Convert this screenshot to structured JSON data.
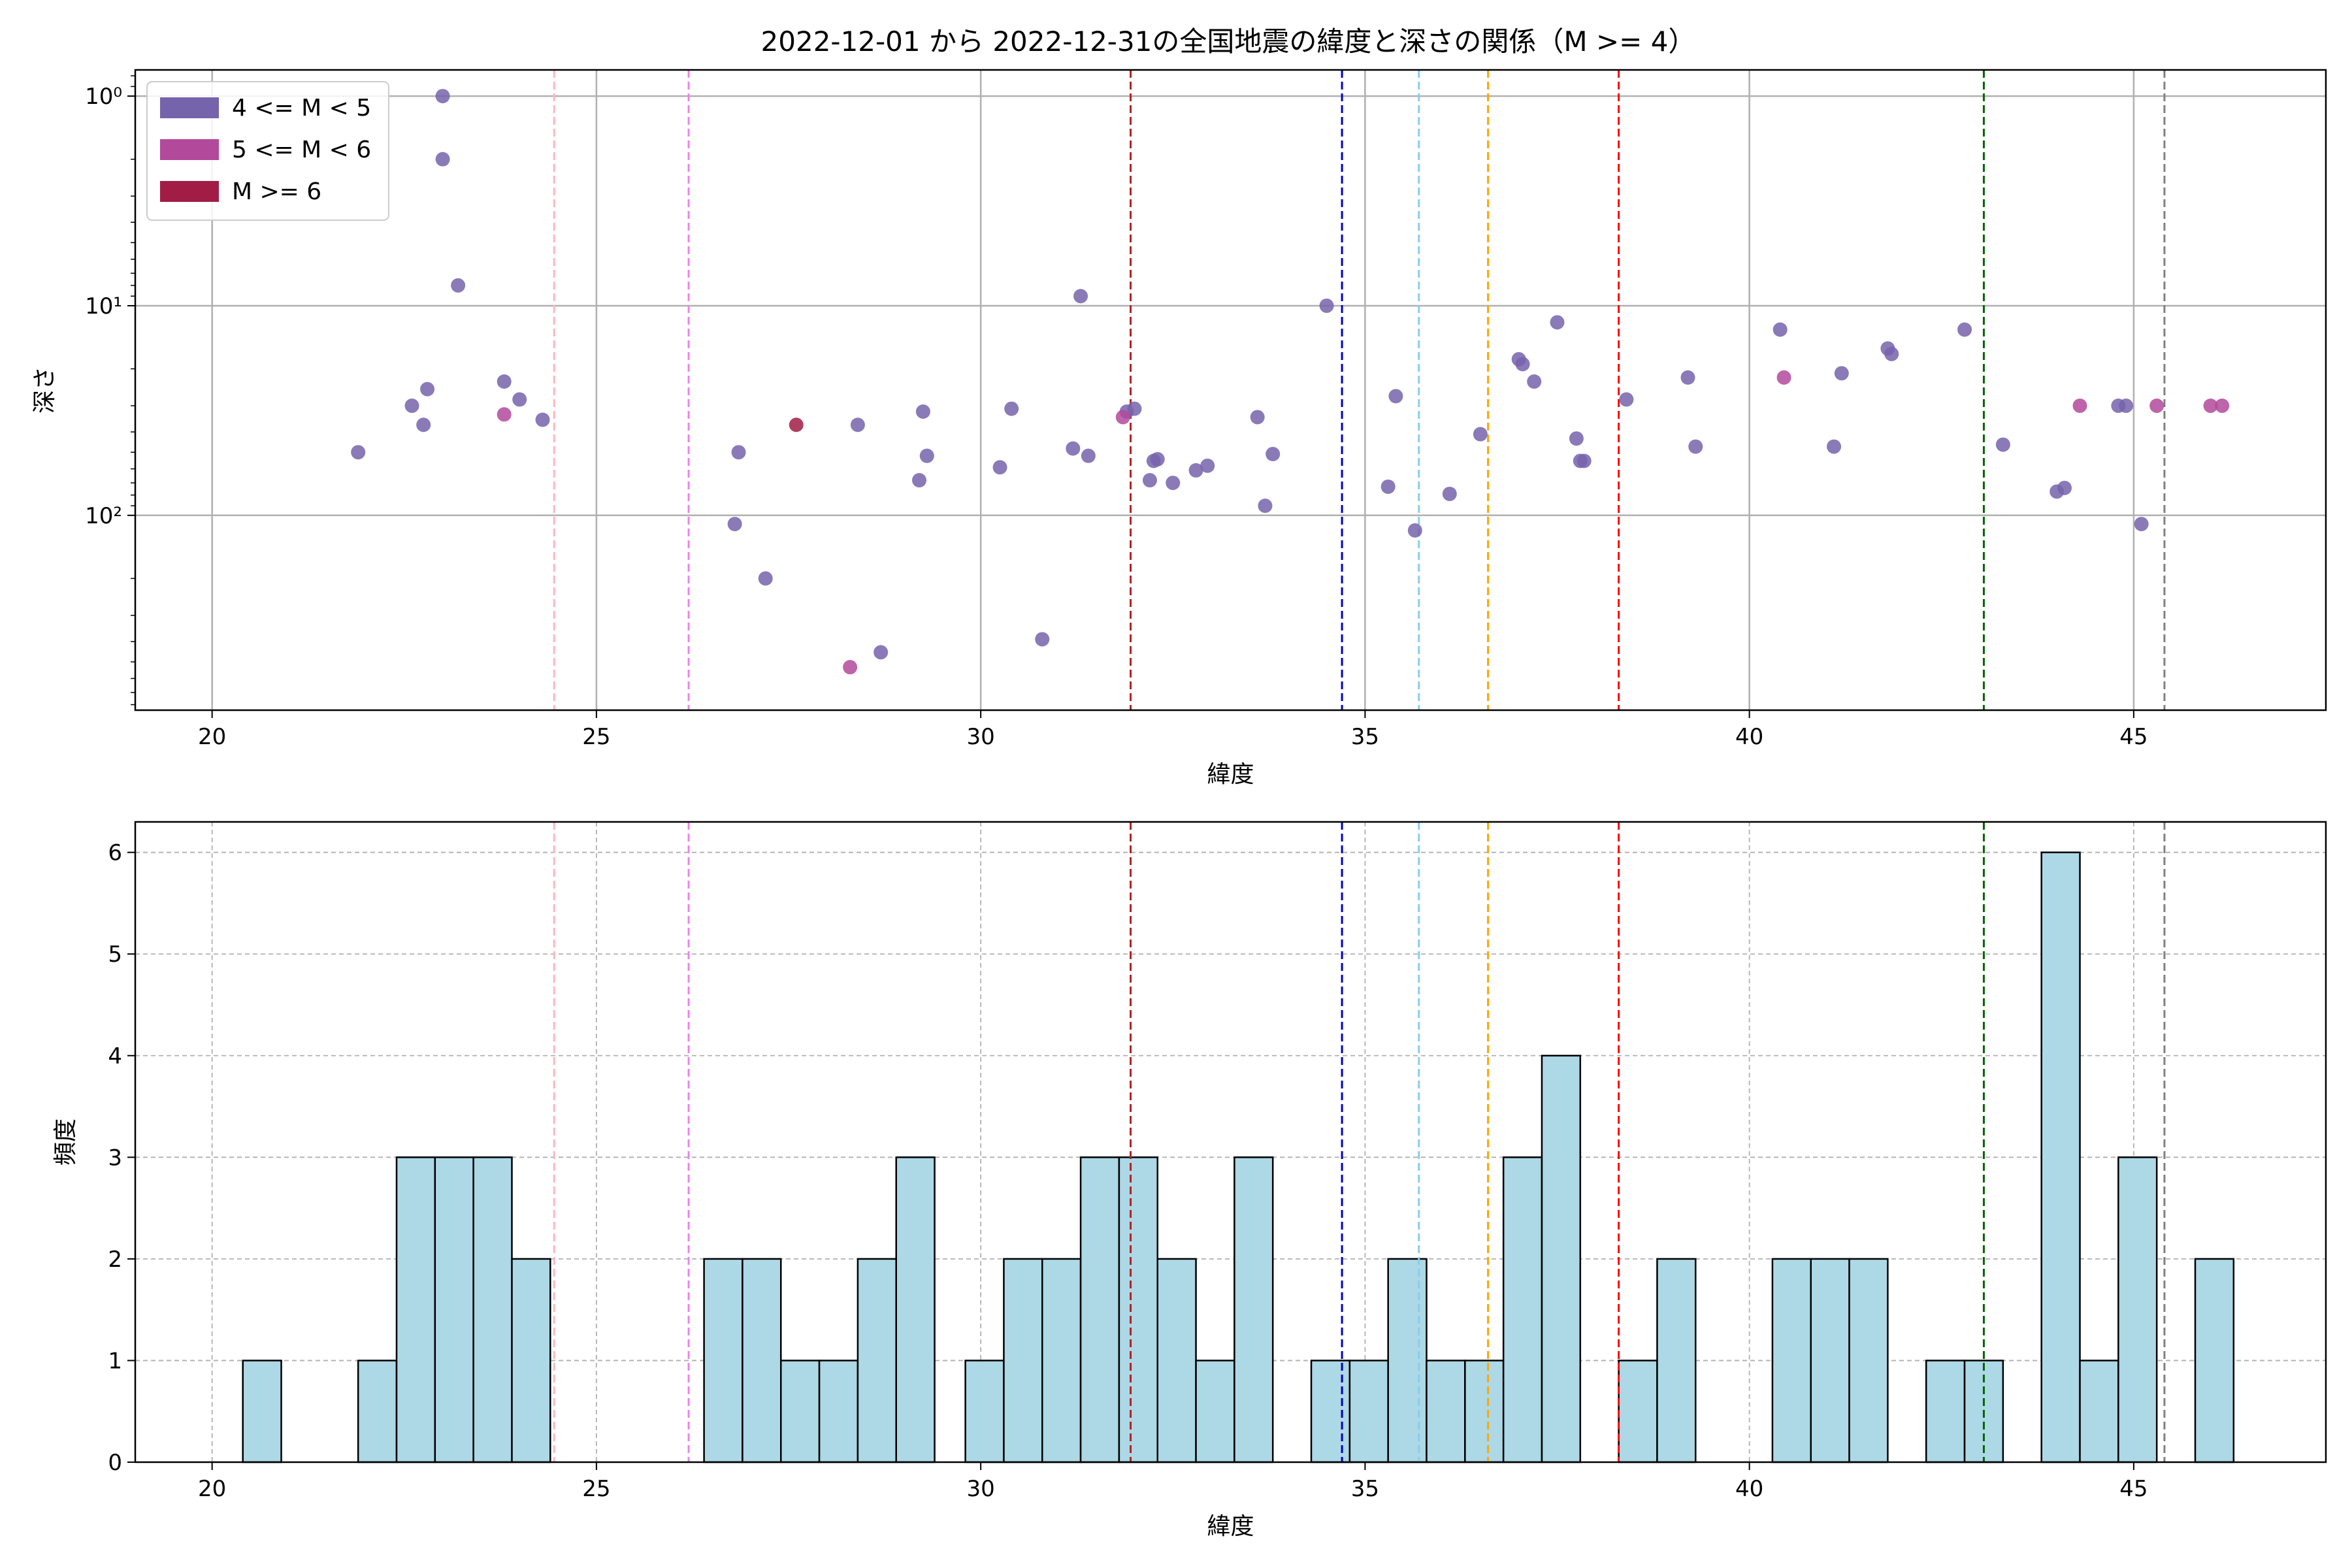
{
  "chart_data": [
    {
      "type": "scatter",
      "title": "2022-12-01 から 2022-12-31の全国地震の緯度と深さの関係（M >= 4）",
      "xlabel": "緯度",
      "ylabel": "深さ",
      "xlim": [
        19,
        47.5
      ],
      "ylim": [
        850,
        0.75
      ],
      "yscale": "log",
      "y_inverted": true,
      "grid": true,
      "xticks": [
        "20",
        "25",
        "30",
        "35",
        "40",
        "45"
      ],
      "yticks": [
        {
          "value": 1,
          "label": "10⁰"
        },
        {
          "value": 10,
          "label": "10¹"
        },
        {
          "value": 100,
          "label": "10²"
        }
      ],
      "legend_position": "top-left",
      "legend": [
        {
          "label": "4 <= M < 5",
          "color": "#7563ab"
        },
        {
          "label": "5 <= M < 6",
          "color": "#b3499b"
        },
        {
          "label": "M >= 6",
          "color": "#a11d45"
        }
      ],
      "reference_lines": [
        {
          "x": 24.45,
          "color": "#ffb6c1"
        },
        {
          "x": 26.2,
          "color": "#ee82ee"
        },
        {
          "x": 31.95,
          "color": "#b22222"
        },
        {
          "x": 34.7,
          "color": "#0000cd"
        },
        {
          "x": 35.7,
          "color": "#87ceeb"
        },
        {
          "x": 36.6,
          "color": "#ffa500"
        },
        {
          "x": 38.3,
          "color": "#ff0000"
        },
        {
          "x": 43.05,
          "color": "#006400"
        },
        {
          "x": 45.4,
          "color": "#808080"
        }
      ],
      "series": [
        {
          "name": "4 <= M < 5",
          "color": "#7563ab",
          "points": [
            [
              21.9,
              50
            ],
            [
              22.6,
              30
            ],
            [
              22.75,
              37
            ],
            [
              22.8,
              25
            ],
            [
              23.0,
              1
            ],
            [
              23.0,
              2
            ],
            [
              23.2,
              8
            ],
            [
              23.8,
              23
            ],
            [
              24.0,
              28
            ],
            [
              24.3,
              35
            ],
            [
              26.8,
              110
            ],
            [
              26.85,
              50
            ],
            [
              27.2,
              200
            ],
            [
              28.4,
              37
            ],
            [
              28.7,
              450
            ],
            [
              29.2,
              68
            ],
            [
              29.25,
              32
            ],
            [
              29.3,
              52
            ],
            [
              30.25,
              59
            ],
            [
              30.4,
              31
            ],
            [
              30.8,
              390
            ],
            [
              31.2,
              48
            ],
            [
              31.3,
              9
            ],
            [
              31.4,
              52
            ],
            [
              31.9,
              32
            ],
            [
              32.0,
              31
            ],
            [
              32.2,
              68
            ],
            [
              32.25,
              55
            ],
            [
              32.3,
              54
            ],
            [
              32.5,
              70
            ],
            [
              32.8,
              61
            ],
            [
              32.95,
              58
            ],
            [
              33.6,
              34
            ],
            [
              33.7,
              90
            ],
            [
              33.8,
              51
            ],
            [
              34.5,
              10
            ],
            [
              35.3,
              73
            ],
            [
              35.4,
              27
            ],
            [
              35.65,
              118
            ],
            [
              36.1,
              79
            ],
            [
              36.5,
              41
            ],
            [
              37.0,
              18
            ],
            [
              37.05,
              19
            ],
            [
              37.2,
              23
            ],
            [
              37.5,
              12
            ],
            [
              37.75,
              43
            ],
            [
              37.8,
              55
            ],
            [
              37.85,
              55
            ],
            [
              38.4,
              28
            ],
            [
              39.2,
              22
            ],
            [
              39.3,
              47
            ],
            [
              40.4,
              13
            ],
            [
              41.1,
              47
            ],
            [
              41.2,
              21
            ],
            [
              41.8,
              16
            ],
            [
              41.85,
              17
            ],
            [
              42.8,
              13
            ],
            [
              43.3,
              46
            ],
            [
              44.0,
              77
            ],
            [
              44.1,
              74
            ],
            [
              44.8,
              30
            ],
            [
              44.9,
              30
            ],
            [
              45.1,
              110
            ]
          ]
        },
        {
          "name": "5 <= M < 6",
          "color": "#b3499b",
          "points": [
            [
              23.8,
              33
            ],
            [
              28.3,
              530
            ],
            [
              31.85,
              34
            ],
            [
              40.45,
              22
            ],
            [
              44.3,
              30
            ],
            [
              45.3,
              30
            ],
            [
              46.0,
              30
            ],
            [
              46.15,
              30
            ]
          ]
        },
        {
          "name": "M >= 6",
          "color": "#a11d45",
          "points": [
            [
              27.6,
              37
            ]
          ]
        }
      ]
    },
    {
      "type": "bar",
      "subtype": "histogram",
      "xlabel": "緯度",
      "ylabel": "頻度",
      "xlim": [
        19,
        47.5
      ],
      "ylim": [
        0,
        6.3
      ],
      "grid": true,
      "bar_color": "#add8e6",
      "edge_color": "#000000",
      "xticks": [
        "20",
        "25",
        "30",
        "35",
        "40",
        "45"
      ],
      "yticks": [
        "0",
        "1",
        "2",
        "3",
        "4",
        "5",
        "6"
      ],
      "bin_width": 0.5,
      "bins": [
        {
          "start": 20.4,
          "count": 1
        },
        {
          "start": 21.9,
          "count": 1
        },
        {
          "start": 22.4,
          "count": 3
        },
        {
          "start": 22.9,
          "count": 3
        },
        {
          "start": 23.4,
          "count": 3
        },
        {
          "start": 23.9,
          "count": 2
        },
        {
          "start": 26.4,
          "count": 2
        },
        {
          "start": 26.9,
          "count": 2
        },
        {
          "start": 27.4,
          "count": 1
        },
        {
          "start": 27.9,
          "count": 1
        },
        {
          "start": 28.4,
          "count": 2
        },
        {
          "start": 28.9,
          "count": 3
        },
        {
          "start": 29.8,
          "count": 1
        },
        {
          "start": 30.3,
          "count": 2
        },
        {
          "start": 30.8,
          "count": 2
        },
        {
          "start": 31.3,
          "count": 3
        },
        {
          "start": 31.8,
          "count": 3
        },
        {
          "start": 32.3,
          "count": 2
        },
        {
          "start": 32.8,
          "count": 1
        },
        {
          "start": 33.3,
          "count": 3
        },
        {
          "start": 34.3,
          "count": 1
        },
        {
          "start": 34.8,
          "count": 1
        },
        {
          "start": 35.3,
          "count": 2
        },
        {
          "start": 35.8,
          "count": 1
        },
        {
          "start": 36.3,
          "count": 1
        },
        {
          "start": 36.8,
          "count": 3
        },
        {
          "start": 37.3,
          "count": 4
        },
        {
          "start": 38.3,
          "count": 1
        },
        {
          "start": 38.8,
          "count": 2
        },
        {
          "start": 40.3,
          "count": 2
        },
        {
          "start": 40.8,
          "count": 2
        },
        {
          "start": 41.3,
          "count": 2
        },
        {
          "start": 42.3,
          "count": 1
        },
        {
          "start": 42.8,
          "count": 1
        },
        {
          "start": 43.8,
          "count": 6
        },
        {
          "start": 44.3,
          "count": 1
        },
        {
          "start": 44.8,
          "count": 3
        },
        {
          "start": 45.8,
          "count": 2
        }
      ],
      "reference_lines": [
        {
          "x": 24.45,
          "color": "#ffb6c1"
        },
        {
          "x": 26.2,
          "color": "#ee82ee"
        },
        {
          "x": 31.95,
          "color": "#b22222"
        },
        {
          "x": 34.7,
          "color": "#0000cd"
        },
        {
          "x": 35.7,
          "color": "#87ceeb"
        },
        {
          "x": 36.6,
          "color": "#ffa500"
        },
        {
          "x": 38.3,
          "color": "#ff0000"
        },
        {
          "x": 43.05,
          "color": "#006400"
        },
        {
          "x": 45.4,
          "color": "#808080"
        }
      ]
    }
  ]
}
